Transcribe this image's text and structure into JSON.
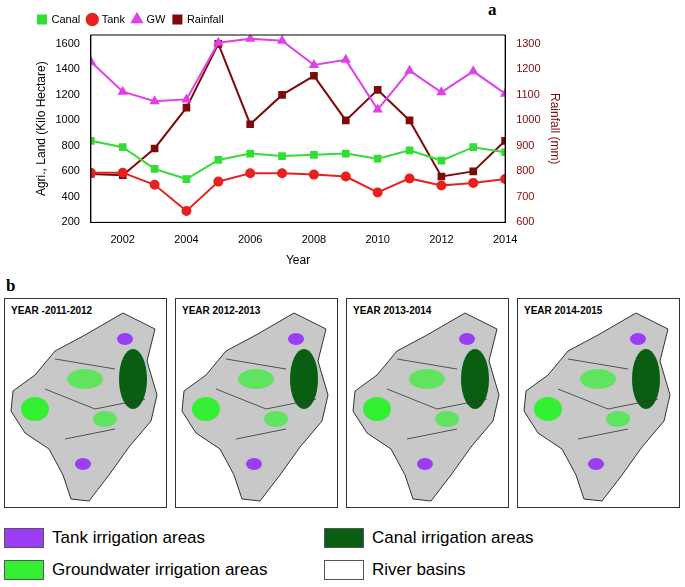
{
  "chart_data": {
    "type": "line",
    "panel_label": "a",
    "x_label": "Year",
    "y_label": "Agri., Land (Kilo Hectare)",
    "y2_label": "Rainfall (mm)",
    "x": [
      2001,
      2002,
      2003,
      2004,
      2005,
      2006,
      2007,
      2008,
      2009,
      2010,
      2011,
      2012,
      2013,
      2014
    ],
    "series": [
      {
        "name": "Canal",
        "color": "#33dd33",
        "marker": "square",
        "values": [
          840,
          790,
          620,
          540,
          690,
          740,
          720,
          730,
          740,
          700,
          765,
          685,
          790,
          750
        ]
      },
      {
        "name": "Tank",
        "color": "#e8211d",
        "marker": "circle",
        "values": [
          590,
          590,
          495,
          290,
          520,
          585,
          585,
          575,
          560,
          435,
          545,
          490,
          510,
          540
        ]
      },
      {
        "name": "GW",
        "color": "#e040e8",
        "marker": "triangle",
        "values": [
          1460,
          1225,
          1150,
          1165,
          1610,
          1640,
          1625,
          1435,
          1475,
          1085,
          1390,
          1220,
          1385,
          1210
        ]
      },
      {
        "name": "Rainfall",
        "color": "#7f0a0a",
        "marker": "square",
        "axis": "y2",
        "values": [
          790,
          785,
          890,
          1050,
          1300,
          985,
          1100,
          1175,
          1000,
          1120,
          1000,
          780,
          800,
          920
        ]
      }
    ],
    "xlim": [
      2001,
      2014
    ],
    "xticks": [
      2002,
      2004,
      2006,
      2008,
      2010,
      2012,
      2014
    ],
    "ylim": [
      200,
      1670
    ],
    "yticks": [
      200,
      400,
      600,
      800,
      1000,
      1200,
      1400,
      1600
    ],
    "y2lim": [
      600,
      1335
    ],
    "y2ticks": [
      600,
      700,
      800,
      900,
      1000,
      1100,
      1200,
      1300
    ],
    "grid": false,
    "legend": "upper left"
  },
  "maps": {
    "panel_label": "b",
    "titles": [
      "YEAR -2011-2012",
      "YEAR 2012-2013",
      "YEAR 2013-2014",
      "YEAR 2014-2015"
    ],
    "key": [
      {
        "label": "Tank irrigation areas",
        "color": "#9b3df5"
      },
      {
        "label": "Canal irrigation areas",
        "color": "#0a5e12"
      },
      {
        "label": "Groundwater irrigation areas",
        "color": "#33f033"
      },
      {
        "label": "River basins",
        "color": "#ffffff"
      }
    ]
  }
}
